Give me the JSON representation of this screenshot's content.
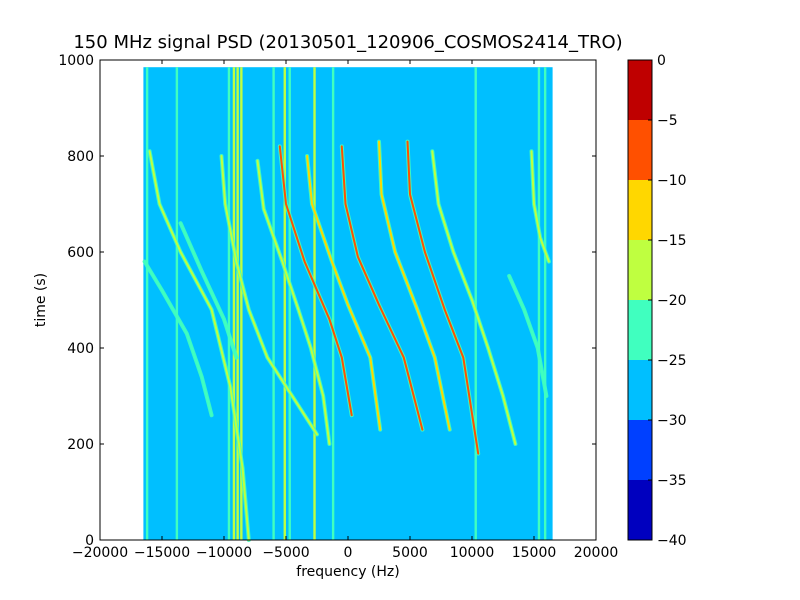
{
  "chart_data": {
    "type": "heatmap",
    "title": "150 MHz signal PSD (20130501_120906_COSMOS2414_TRO)",
    "xlabel": "frequency (Hz)",
    "ylabel": "time (s)",
    "xlim": [
      -20000,
      20000
    ],
    "ylim": [
      0,
      1000
    ],
    "x_ticks": [
      -20000,
      -15000,
      -10000,
      -5000,
      0,
      5000,
      10000,
      15000,
      20000
    ],
    "x_tick_labels": [
      "−20000",
      "−15000",
      "−10000",
      "−5000",
      "0",
      "5000",
      "10000",
      "15000",
      "20000"
    ],
    "y_ticks": [
      0,
      200,
      400,
      600,
      800,
      1000
    ],
    "y_tick_labels": [
      "0",
      "200",
      "400",
      "600",
      "800",
      "1000"
    ],
    "data_extent": {
      "x": [
        -16500,
        16500
      ],
      "y": [
        0,
        985
      ]
    },
    "background_level": -28,
    "colorbar": {
      "min": -40,
      "max": 0,
      "ticks": [
        0,
        -5,
        -10,
        -15,
        -20,
        -25,
        -30,
        -35,
        -40
      ],
      "tick_labels": [
        "0",
        "−5",
        "−10",
        "−15",
        "−20",
        "−25",
        "−30",
        "−35",
        "−40"
      ],
      "bands": [
        {
          "from": -40,
          "to": -35,
          "color": "#0000bf"
        },
        {
          "from": -35,
          "to": -30,
          "color": "#0040ff"
        },
        {
          "from": -30,
          "to": -25,
          "color": "#00bfff"
        },
        {
          "from": -25,
          "to": -20,
          "color": "#40ffbf"
        },
        {
          "from": -20,
          "to": -15,
          "color": "#bfff40"
        },
        {
          "from": -15,
          "to": -10,
          "color": "#ffd700"
        },
        {
          "from": -10,
          "to": -5,
          "color": "#ff5000"
        },
        {
          "from": -5,
          "to": 0,
          "color": "#bf0000"
        }
      ]
    },
    "vertical_lines": [
      {
        "x": -16200,
        "level": -22
      },
      {
        "x": -13800,
        "level": -22
      },
      {
        "x": -9600,
        "level": -22
      },
      {
        "x": -9200,
        "level": -18
      },
      {
        "x": -8900,
        "level": -17
      },
      {
        "x": -8600,
        "level": -18
      },
      {
        "x": -6000,
        "level": -22
      },
      {
        "x": -5100,
        "level": -20
      },
      {
        "x": -4700,
        "level": -22
      },
      {
        "x": -2700,
        "level": -19
      },
      {
        "x": -1200,
        "level": -23
      },
      {
        "x": 10300,
        "level": -22
      },
      {
        "x": 15400,
        "level": -22
      },
      {
        "x": 15900,
        "level": -23
      }
    ],
    "doppler_tracks": [
      {
        "points": [
          [
            -16000,
            810
          ],
          [
            -15200,
            700
          ],
          [
            -13500,
            600
          ],
          [
            -11000,
            480
          ],
          [
            -9500,
            320
          ],
          [
            -8500,
            150
          ],
          [
            -8000,
            0
          ]
        ],
        "level": -20
      },
      {
        "points": [
          [
            -16400,
            580
          ],
          [
            -15000,
            520
          ],
          [
            -13000,
            430
          ],
          [
            -11800,
            340
          ],
          [
            -11000,
            260
          ]
        ],
        "level": -21
      },
      {
        "points": [
          [
            -13500,
            660
          ],
          [
            -11800,
            560
          ],
          [
            -10000,
            460
          ],
          [
            -9000,
            380
          ]
        ],
        "level": -22
      },
      {
        "points": [
          [
            -10200,
            800
          ],
          [
            -9900,
            700
          ],
          [
            -9000,
            580
          ],
          [
            -8000,
            480
          ],
          [
            -6500,
            380
          ],
          [
            -4000,
            280
          ],
          [
            -2500,
            220
          ]
        ],
        "level": -20
      },
      {
        "points": [
          [
            -7300,
            790
          ],
          [
            -6800,
            690
          ],
          [
            -5300,
            580
          ],
          [
            -4000,
            480
          ],
          [
            -3000,
            400
          ],
          [
            -2000,
            300
          ],
          [
            -1500,
            200
          ]
        ],
        "level": -20
      },
      {
        "points": [
          [
            -5500,
            820
          ],
          [
            -5000,
            700
          ],
          [
            -3500,
            580
          ],
          [
            -1500,
            460
          ],
          [
            -500,
            380
          ],
          [
            300,
            260
          ]
        ],
        "level": -8
      },
      {
        "points": [
          [
            -3300,
            800
          ],
          [
            -2900,
            700
          ],
          [
            -1300,
            580
          ],
          [
            0,
            490
          ],
          [
            1800,
            380
          ],
          [
            2600,
            230
          ]
        ],
        "level": -15
      },
      {
        "points": [
          [
            -500,
            820
          ],
          [
            -200,
            700
          ],
          [
            800,
            590
          ],
          [
            2500,
            490
          ],
          [
            4500,
            380
          ],
          [
            6000,
            230
          ]
        ],
        "level": -6
      },
      {
        "points": [
          [
            2500,
            830
          ],
          [
            2700,
            720
          ],
          [
            3800,
            600
          ],
          [
            5600,
            480
          ],
          [
            7000,
            380
          ],
          [
            8200,
            230
          ]
        ],
        "level": -12
      },
      {
        "points": [
          [
            4800,
            830
          ],
          [
            5000,
            720
          ],
          [
            6200,
            600
          ],
          [
            7800,
            480
          ],
          [
            9300,
            380
          ],
          [
            10500,
            180
          ]
        ],
        "level": -8
      },
      {
        "points": [
          [
            6800,
            810
          ],
          [
            7300,
            700
          ],
          [
            8500,
            600
          ],
          [
            10000,
            500
          ],
          [
            11300,
            400
          ],
          [
            12500,
            300
          ],
          [
            13500,
            200
          ]
        ],
        "level": -20
      },
      {
        "points": [
          [
            13000,
            550
          ],
          [
            14200,
            480
          ],
          [
            15300,
            400
          ],
          [
            16000,
            300
          ]
        ],
        "level": -23
      },
      {
        "points": [
          [
            14800,
            810
          ],
          [
            15000,
            700
          ],
          [
            15500,
            630
          ],
          [
            16200,
            580
          ]
        ],
        "level": -18
      }
    ]
  }
}
